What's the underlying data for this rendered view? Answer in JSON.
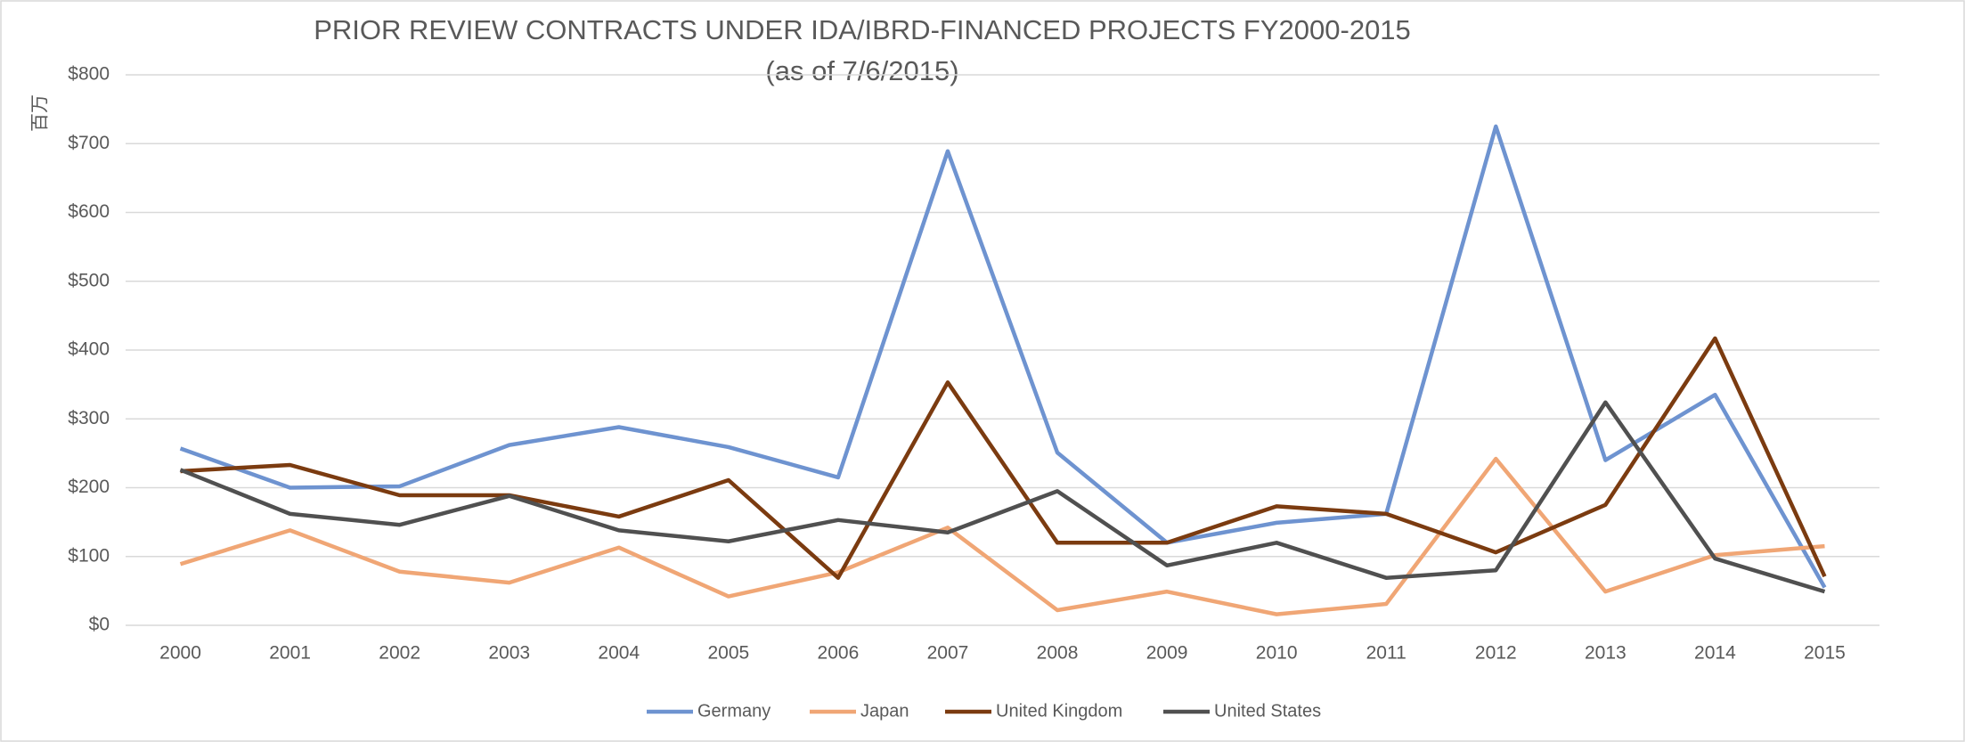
{
  "chart_data": {
    "type": "line",
    "title": "PRIOR REVIEW CONTRACTS UNDER IDA/IBRD-FINANCED PROJECTS  FY2000-2015",
    "subtitle": "(as of 7/6/2015)",
    "y_label": "百万",
    "categories": [
      "2000",
      "2001",
      "2002",
      "2003",
      "2004",
      "2005",
      "2006",
      "2007",
      "2008",
      "2009",
      "2010",
      "2011",
      "2012",
      "2013",
      "2014",
      "2015"
    ],
    "series": [
      {
        "name": "Germany",
        "color": "#6e93d0",
        "values": [
          257,
          200,
          202,
          262,
          288,
          259,
          215,
          689,
          251,
          120,
          149,
          162,
          725,
          240,
          335,
          55
        ]
      },
      {
        "name": "Japan",
        "color": "#f0a675",
        "values": [
          89,
          138,
          78,
          62,
          113,
          42,
          77,
          142,
          22,
          49,
          16,
          31,
          242,
          49,
          102,
          115
        ]
      },
      {
        "name": "United Kingdom",
        "color": "#7b3b10",
        "values": [
          224,
          233,
          189,
          189,
          158,
          211,
          69,
          353,
          120,
          120,
          173,
          162,
          106,
          175,
          417,
          71
        ]
      },
      {
        "name": "United States",
        "color": "#505050",
        "values": [
          226,
          162,
          146,
          188,
          138,
          122,
          153,
          135,
          195,
          87,
          120,
          69,
          80,
          324,
          97,
          49
        ]
      }
    ],
    "ylim": [
      0,
      800
    ],
    "yticks": [
      {
        "value": 0,
        "label": "$0"
      },
      {
        "value": 100,
        "label": "$100"
      },
      {
        "value": 200,
        "label": "$200"
      },
      {
        "value": 300,
        "label": "$300"
      },
      {
        "value": 400,
        "label": "$400"
      },
      {
        "value": 500,
        "label": "$500"
      },
      {
        "value": 600,
        "label": "$600"
      },
      {
        "value": 700,
        "label": "$700"
      },
      {
        "value": 800,
        "label": "$800"
      }
    ],
    "grid": true,
    "legend": "bottom"
  }
}
